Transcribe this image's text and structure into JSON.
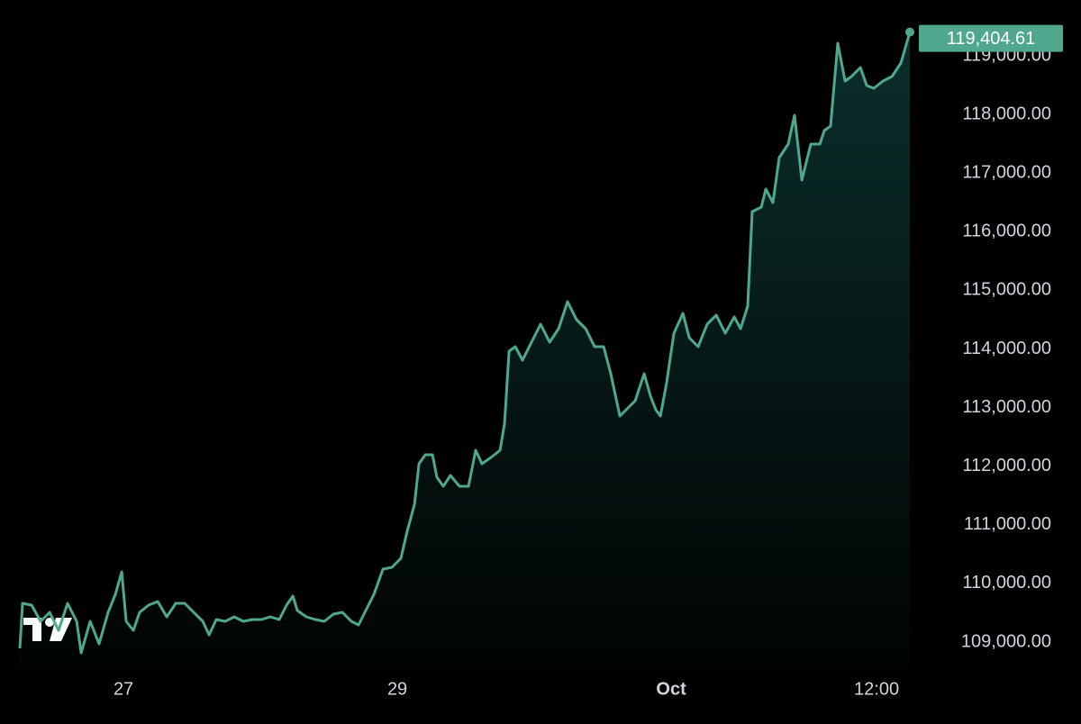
{
  "chart_data": {
    "type": "area",
    "x": [
      -0.757,
      -0.737,
      -0.671,
      -0.605,
      -0.539,
      -0.474,
      -0.408,
      -0.342,
      -0.309,
      -0.243,
      -0.178,
      -0.112,
      -0.059,
      -0.013,
      0.02,
      0.072,
      0.118,
      0.184,
      0.25,
      0.316,
      0.382,
      0.447,
      0.513,
      0.579,
      0.625,
      0.678,
      0.743,
      0.809,
      0.875,
      0.941,
      1.007,
      1.072,
      1.138,
      1.191,
      1.237,
      1.27,
      1.336,
      1.401,
      1.467,
      1.533,
      1.599,
      1.664,
      1.717,
      1.763,
      1.829,
      1.895,
      1.961,
      2.026,
      2.072,
      2.125,
      2.158,
      2.204,
      2.257,
      2.289,
      2.336,
      2.388,
      2.454,
      2.52,
      2.572,
      2.618,
      2.684,
      2.75,
      2.783,
      2.816,
      2.862,
      2.914,
      2.98,
      3.046,
      3.112,
      3.178,
      3.243,
      3.309,
      3.375,
      3.441,
      3.507,
      3.559,
      3.625,
      3.671,
      3.737,
      3.803,
      3.849,
      3.888,
      3.921,
      3.967,
      4.02,
      4.086,
      4.132,
      4.197,
      4.263,
      4.329,
      4.395,
      4.461,
      4.507,
      4.559,
      4.592,
      4.658,
      4.691,
      4.743,
      4.789,
      4.855,
      4.901,
      4.954,
      5.02,
      5.086,
      5.118,
      5.164,
      5.217,
      5.27,
      5.316,
      5.382,
      5.428,
      5.48,
      5.546,
      5.612,
      5.678,
      5.743
    ],
    "series": [
      {
        "color": "#4fa88e",
        "values": [
          108892,
          109660,
          109630,
          109353,
          109507,
          109200,
          109660,
          109353,
          108816,
          109353,
          108969,
          109507,
          109814,
          110198,
          109353,
          109200,
          109507,
          109630,
          109691,
          109430,
          109660,
          109660,
          109507,
          109353,
          109123,
          109384,
          109353,
          109430,
          109353,
          109384,
          109384,
          109430,
          109384,
          109630,
          109783,
          109538,
          109430,
          109384,
          109353,
          109476,
          109507,
          109353,
          109292,
          109507,
          109814,
          110244,
          110275,
          110428,
          110889,
          111350,
          112041,
          112195,
          112195,
          111811,
          111657,
          111842,
          111657,
          111657,
          112272,
          112041,
          112149,
          112272,
          112732,
          113961,
          114038,
          113808,
          114115,
          114422,
          114115,
          114345,
          114806,
          114499,
          114345,
          114038,
          114038,
          113577,
          112855,
          112963,
          113116,
          113577,
          113193,
          112963,
          112855,
          113424,
          114269,
          114606,
          114192,
          114038,
          114422,
          114576,
          114269,
          114545,
          114345,
          114729,
          116342,
          116419,
          116726,
          116496,
          117264,
          117494,
          117986,
          116880,
          117494,
          117494,
          117724,
          117801,
          119214,
          118569,
          118646,
          118800,
          118492,
          118446,
          118569,
          118646,
          118877,
          119404.61
        ],
        "value_labels": [
          null,
          null,
          null,
          null,
          null,
          null,
          null,
          null,
          null,
          null,
          null,
          null,
          null,
          null,
          null,
          null,
          null,
          null,
          null,
          null,
          null,
          null,
          null,
          null,
          null,
          null,
          null,
          null,
          null,
          null,
          null,
          null,
          null,
          null,
          null,
          null,
          null,
          null,
          null,
          null,
          null,
          null,
          null,
          null,
          null,
          null,
          null,
          null,
          null,
          null,
          null,
          null,
          null,
          null,
          null,
          null,
          null,
          null,
          null,
          null,
          null,
          null,
          null,
          null,
          null,
          null,
          null,
          null,
          null,
          null,
          null,
          null,
          null,
          null,
          null,
          null,
          null,
          null,
          null,
          null,
          null,
          null,
          null,
          null,
          null,
          null,
          null,
          null,
          null,
          null,
          null,
          null,
          null,
          null,
          null,
          null,
          null,
          null,
          null,
          null,
          null,
          null,
          null,
          null,
          null,
          null,
          null,
          null,
          null,
          null,
          null,
          null,
          null,
          null,
          null,
          "119,404.61"
        ]
      }
    ],
    "xlim": [
      -0.757,
      5.743
    ],
    "xticks": [
      {
        "value": 0,
        "label": "27"
      },
      {
        "value": 2,
        "label": "29"
      },
      {
        "value": 4,
        "label": "Oct"
      },
      {
        "value": 5.5,
        "label": "12:00"
      }
    ],
    "ylim": [
      108585,
      119952
    ],
    "yticks": [
      {
        "value": 109000,
        "label": "109,000.00"
      },
      {
        "value": 110000,
        "label": "110,000.00"
      },
      {
        "value": 111000,
        "label": "111,000.00"
      },
      {
        "value": 112000,
        "label": "112,000.00"
      },
      {
        "value": 113000,
        "label": "113,000.00"
      },
      {
        "value": 114000,
        "label": "114,000.00"
      },
      {
        "value": 115000,
        "label": "115,000.00"
      },
      {
        "value": 116000,
        "label": "116,000.00"
      },
      {
        "value": 117000,
        "label": "117,000.00"
      },
      {
        "value": 118000,
        "label": "118,000.00"
      },
      {
        "value": 119000,
        "label": "119,000.00"
      }
    ],
    "grid": false
  }
}
